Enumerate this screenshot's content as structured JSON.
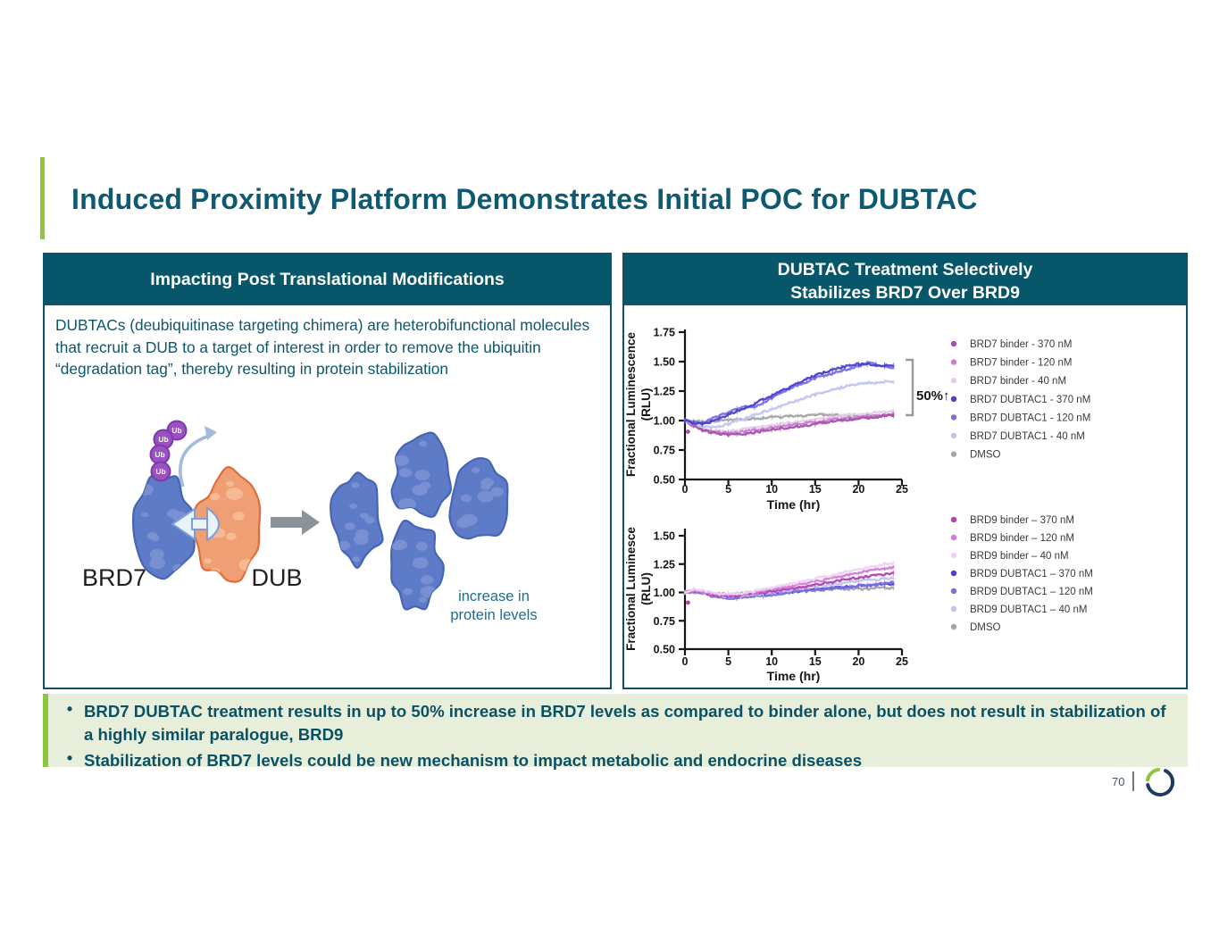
{
  "slide": {
    "title": "Induced Proximity Platform Demonstrates Initial POC for DUBTAC",
    "page_number": "70"
  },
  "theme": {
    "accent_green": "#8cc63f",
    "header_teal": "#07566a",
    "text_teal": "#0f566b",
    "takeaway_bg": "#e7efda"
  },
  "left_panel": {
    "header": "Impacting Post Translational Modifications",
    "body": "DUBTACs (deubiquitinase targeting chimera) are heterobifunctional molecules that recruit a DUB to a target of interest in order to remove the ubiquitin “degradation tag”, thereby resulting in protein stabilization",
    "diagram": {
      "ub_label": "Ub",
      "target_label": "BRD7",
      "dub_label": "DUB",
      "caption": [
        "increase in",
        "protein levels"
      ],
      "colors": {
        "target_blob": "#5d7bc7",
        "target_stroke": "#4765b5",
        "target_spot": "#7b91d3",
        "dub_blob": "#f09e73",
        "dub_stroke": "#e06e3a",
        "dub_spot": "#f5bb97",
        "ubiquitin": "#9b50c4",
        "ubiquitin_stroke": "#7b3aa9",
        "linker": "#eaf2fb",
        "linker_stroke": "#7d9fd4",
        "gray_arrow": "#8b9299",
        "curved_arrow": "#a6bbdb",
        "caption_text": "#1c6d90"
      }
    }
  },
  "right_panel": {
    "header": [
      "DUBTAC Treatment Selectively",
      "Stabilizes BRD7 Over BRD9"
    ]
  },
  "takeaways": {
    "bullets": [
      "BRD7 DUBTAC treatment results in up to 50% increase in BRD7 levels as compared to binder alone, but does not result in stabilization of a highly similar paralogue, BRD9",
      "Stabilization of BRD7 levels could be new mechanism to impact metabolic and endocrine diseases"
    ]
  },
  "chart_data": [
    {
      "type": "line",
      "title": "",
      "xlabel": "Time (hr)",
      "ylabel_lines": [
        "Fractional  Luminescence",
        "(RLU)"
      ],
      "xlim": [
        0,
        25
      ],
      "ylim": [
        0.5,
        1.75
      ],
      "xticks": [
        "0",
        "5",
        "10",
        "15",
        "20",
        "25"
      ],
      "yticks": [
        "0.50",
        "0.75",
        "1.00",
        "1.25",
        "1.50",
        "1.75"
      ],
      "grid": false,
      "legend_position": "right",
      "annotation": {
        "label": "50%",
        "arrow": "↑"
      },
      "x": [
        0,
        1,
        2,
        3,
        4,
        5,
        6,
        7,
        8,
        9,
        10,
        11,
        12,
        13,
        14,
        15,
        16,
        17,
        18,
        19,
        20,
        21,
        22,
        23,
        24
      ],
      "series": [
        {
          "name": "BRD7 binder - 370 nM",
          "color": "#a84fae",
          "values": [
            1.0,
            0.96,
            0.92,
            0.9,
            0.89,
            0.88,
            0.88,
            0.89,
            0.9,
            0.91,
            0.92,
            0.93,
            0.94,
            0.95,
            0.96,
            0.97,
            0.98,
            0.99,
            1.0,
            1.01,
            1.02,
            1.02,
            1.03,
            1.04,
            1.05
          ]
        },
        {
          "name": "BRD7 binder - 120 nM",
          "color": "#c77fce",
          "values": [
            1.0,
            0.95,
            0.92,
            0.91,
            0.9,
            0.9,
            0.9,
            0.91,
            0.92,
            0.93,
            0.94,
            0.95,
            0.96,
            0.97,
            0.98,
            0.99,
            1.0,
            1.01,
            1.01,
            1.02,
            1.03,
            1.04,
            1.04,
            1.05,
            1.06
          ]
        },
        {
          "name": "BRD7 binder - 40 nM",
          "color": "#e6cdea",
          "values": [
            1.0,
            0.96,
            0.93,
            0.92,
            0.91,
            0.91,
            0.92,
            0.93,
            0.94,
            0.95,
            0.96,
            0.97,
            0.98,
            0.99,
            1.0,
            1.01,
            1.02,
            1.03,
            1.04,
            1.05,
            1.05,
            1.06,
            1.07,
            1.07,
            1.08
          ]
        },
        {
          "name": "BRD7 DUBTAC1 - 370 nM",
          "color": "#4a3fd0",
          "values": [
            1.0,
            0.98,
            0.97,
            0.99,
            1.02,
            1.05,
            1.08,
            1.11,
            1.14,
            1.18,
            1.21,
            1.25,
            1.28,
            1.32,
            1.35,
            1.38,
            1.41,
            1.43,
            1.45,
            1.47,
            1.48,
            1.48,
            1.47,
            1.47,
            1.47
          ]
        },
        {
          "name": "BRD7 DUBTAC1 - 120 nM",
          "color": "#7a70e0",
          "values": [
            1.0,
            0.99,
            0.98,
            1.01,
            1.04,
            1.07,
            1.1,
            1.12,
            1.11,
            1.15,
            1.19,
            1.23,
            1.27,
            1.3,
            1.33,
            1.36,
            1.38,
            1.4,
            1.42,
            1.44,
            1.46,
            1.49,
            1.48,
            1.46,
            1.45
          ]
        },
        {
          "name": "BRD7 DUBTAC1 - 40 nM",
          "color": "#c0c4ee",
          "values": [
            1.0,
            0.97,
            0.95,
            0.94,
            0.95,
            0.97,
            1.0,
            1.02,
            1.05,
            1.07,
            1.1,
            1.12,
            1.15,
            1.17,
            1.2,
            1.22,
            1.24,
            1.26,
            1.28,
            1.3,
            1.31,
            1.32,
            1.32,
            1.33,
            1.33
          ]
        },
        {
          "name": "DMSO",
          "color": "#a3a3a8",
          "values": [
            1.0,
            1.0,
            0.99,
            0.99,
            1.0,
            1.0,
            1.01,
            1.01,
            1.02,
            1.02,
            1.03,
            1.03,
            1.04,
            1.04,
            1.04,
            1.05,
            1.05,
            1.05,
            1.04,
            1.04,
            1.04,
            1.04,
            1.04,
            1.04,
            1.04
          ]
        }
      ]
    },
    {
      "type": "line",
      "title": "",
      "xlabel": "Time (hr)",
      "ylabel_lines": [
        "Fractional  Luminesce",
        "(RLU)"
      ],
      "xlim": [
        0,
        25
      ],
      "ylim": [
        0.5,
        1.58
      ],
      "xticks": [
        "0",
        "5",
        "10",
        "15",
        "20",
        "25"
      ],
      "yticks": [
        "0.50",
        "0.75",
        "1.00",
        "1.25",
        "1.50"
      ],
      "grid": false,
      "legend_position": "right",
      "x": [
        0,
        1,
        2,
        3,
        4,
        5,
        6,
        7,
        8,
        9,
        10,
        11,
        12,
        13,
        14,
        15,
        16,
        17,
        18,
        19,
        20,
        21,
        22,
        23,
        24
      ],
      "series": [
        {
          "name": "BRD9 binder – 370 nM",
          "color": "#b043ae",
          "values": [
            1.0,
            1.02,
            1.0,
            0.98,
            0.97,
            0.97,
            0.97,
            0.98,
            0.99,
            1.0,
            1.01,
            1.02,
            1.03,
            1.04,
            1.05,
            1.07,
            1.08,
            1.09,
            1.11,
            1.12,
            1.13,
            1.14,
            1.15,
            1.16,
            1.17
          ]
        },
        {
          "name": "BRD9 binder – 120 nM",
          "color": "#d478dc",
          "values": [
            1.0,
            1.02,
            1.01,
            0.99,
            0.98,
            0.98,
            0.98,
            0.99,
            1.0,
            1.01,
            1.03,
            1.04,
            1.05,
            1.07,
            1.08,
            1.1,
            1.11,
            1.13,
            1.14,
            1.16,
            1.17,
            1.19,
            1.2,
            1.21,
            1.22
          ]
        },
        {
          "name": "BRD9 binder – 40 nM",
          "color": "#eed2f2",
          "values": [
            1.0,
            1.03,
            1.02,
            1.0,
            0.99,
            0.99,
            0.99,
            1.0,
            1.01,
            1.03,
            1.04,
            1.06,
            1.07,
            1.09,
            1.1,
            1.12,
            1.14,
            1.15,
            1.17,
            1.19,
            1.2,
            1.22,
            1.23,
            1.25,
            1.26
          ]
        },
        {
          "name": "BRD9 DUBTAC1 – 370 nM",
          "color": "#4a3fd0",
          "values": [
            1.0,
            1.01,
            1.0,
            0.98,
            0.96,
            0.96,
            0.96,
            0.96,
            0.97,
            0.98,
            0.99,
            1.0,
            1.0,
            1.01,
            1.02,
            1.03,
            1.03,
            1.04,
            1.05,
            1.05,
            1.06,
            1.06,
            1.07,
            1.07,
            1.08
          ]
        },
        {
          "name": "BRD9 DUBTAC1 – 120 nM",
          "color": "#7a70e0",
          "values": [
            1.0,
            1.01,
            1.0,
            0.97,
            0.96,
            0.95,
            0.95,
            0.96,
            0.97,
            0.97,
            0.98,
            0.99,
            1.0,
            1.01,
            1.01,
            1.02,
            1.03,
            1.04,
            1.04,
            1.05,
            1.06,
            1.06,
            1.07,
            1.08,
            1.09
          ]
        },
        {
          "name": "BRD9 DUBTAC1 – 40 nM",
          "color": "#c0c4ee",
          "values": [
            1.0,
            1.02,
            1.01,
            0.98,
            0.97,
            0.96,
            0.97,
            0.97,
            0.98,
            0.99,
            1.0,
            1.01,
            1.02,
            1.03,
            1.04,
            1.05,
            1.06,
            1.07,
            1.08,
            1.09,
            1.1,
            1.11,
            1.11,
            1.12,
            1.13
          ]
        },
        {
          "name": "DMSO",
          "color": "#a3a3a8",
          "values": [
            1.0,
            1.0,
            1.0,
            0.99,
            0.99,
            0.99,
            0.99,
            1.0,
            1.0,
            1.0,
            1.01,
            1.01,
            1.01,
            1.02,
            1.02,
            1.02,
            1.02,
            1.03,
            1.03,
            1.03,
            1.03,
            1.03,
            1.04,
            1.04,
            1.04
          ]
        }
      ]
    }
  ]
}
